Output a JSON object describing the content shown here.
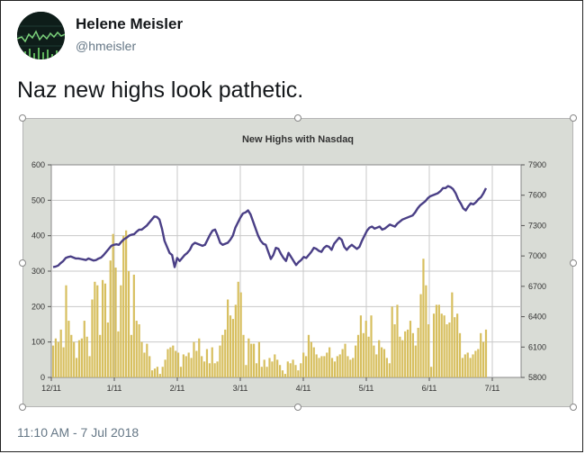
{
  "tweet": {
    "author_name": "Helene Meisler",
    "author_handle": "@hmeisler",
    "text": "Naz new highs look pathetic.",
    "timestamp": "11:10 AM - 7 Jul 2018"
  },
  "colors": {
    "bar": "#d7bf5f",
    "line": "#4a3f86",
    "chart_bg": "#d9dcd6",
    "plot_bg": "#ffffff"
  },
  "chart_data": {
    "type": "bar+line",
    "title": "New Highs with Nasdaq",
    "xlabel": "",
    "ylabel": "",
    "x_ticks": [
      "12/11",
      "1/11",
      "2/11",
      "3/11",
      "4/11",
      "5/11",
      "6/11",
      "7/11"
    ],
    "y_left_ticks": [
      "0",
      "100",
      "200",
      "300",
      "400",
      "500",
      "600"
    ],
    "y_left_range": [
      0,
      600
    ],
    "y_right_ticks": [
      "5800",
      "6100",
      "6400",
      "6700",
      "7000",
      "7300",
      "7600",
      "7900"
    ],
    "y_right_range": [
      5800,
      7900
    ],
    "grid": true,
    "series": [
      {
        "chart_type": "bar",
        "axis": "left",
        "values": [
          90,
          110,
          100,
          135,
          85,
          260,
          160,
          120,
          100,
          55,
          105,
          110,
          160,
          115,
          60,
          220,
          270,
          260,
          120,
          275,
          265,
          155,
          330,
          405,
          310,
          130,
          260,
          400,
          415,
          300,
          120,
          290,
          160,
          150,
          100,
          70,
          95,
          60,
          20,
          25,
          30,
          10,
          30,
          50,
          80,
          85,
          90,
          75,
          70,
          30,
          65,
          60,
          70,
          55,
          100,
          75,
          110,
          60,
          45,
          80,
          40,
          85,
          40,
          45,
          90,
          120,
          135,
          220,
          175,
          165,
          205,
          270,
          240,
          120,
          35,
          110,
          95,
          95,
          40,
          100,
          30,
          50,
          30,
          55,
          45,
          65,
          50,
          35,
          20,
          10,
          45,
          40,
          50,
          35,
          20,
          40,
          70,
          60,
          120,
          100,
          85,
          65,
          55,
          60,
          60,
          70,
          85,
          55,
          45,
          60,
          65,
          80,
          95,
          60,
          50,
          55,
          90,
          120,
          175,
          125,
          160,
          115,
          175,
          90,
          65,
          105,
          85,
          80,
          55,
          40,
          200,
          150,
          205,
          115,
          105,
          130,
          135,
          160,
          125,
          90,
          140,
          235,
          335,
          260,
          150,
          30,
          180,
          205,
          205,
          180,
          175,
          150,
          155,
          240,
          170,
          180,
          125,
          55,
          65,
          70,
          55,
          65,
          75,
          80,
          125,
          100,
          135
        ]
      },
      {
        "chart_type": "line",
        "axis": "right",
        "values": [
          6890,
          6895,
          6905,
          6930,
          6950,
          6980,
          6990,
          6995,
          6985,
          6975,
          6975,
          6970,
          6965,
          6960,
          6975,
          6965,
          6955,
          6960,
          6975,
          6985,
          7010,
          7040,
          7070,
          7100,
          7110,
          7115,
          7110,
          7140,
          7165,
          7180,
          7200,
          7210,
          7215,
          7240,
          7260,
          7260,
          7280,
          7300,
          7330,
          7360,
          7390,
          7385,
          7360,
          7270,
          7150,
          7090,
          7030,
          7010,
          6890,
          6980,
          6950,
          6980,
          7010,
          7030,
          7060,
          7110,
          7130,
          7120,
          7110,
          7100,
          7110,
          7160,
          7210,
          7250,
          7260,
          7200,
          7130,
          7110,
          7120,
          7130,
          7160,
          7200,
          7280,
          7330,
          7380,
          7420,
          7430,
          7450,
          7410,
          7340,
          7270,
          7200,
          7150,
          7120,
          7110,
          7040,
          6970,
          7010,
          7080,
          7070,
          7020,
          6980,
          6950,
          7030,
          6990,
          6950,
          6910,
          6940,
          6960,
          6990,
          6980,
          7010,
          7040,
          7080,
          7070,
          7050,
          7040,
          7080,
          7100,
          7090,
          7060,
          7120,
          7150,
          7180,
          7160,
          7090,
          7060,
          7090,
          7110,
          7090,
          7070,
          7090,
          7150,
          7200,
          7250,
          7280,
          7290,
          7270,
          7280,
          7290,
          7260,
          7270,
          7290,
          7310,
          7300,
          7290,
          7320,
          7340,
          7360,
          7370,
          7380,
          7390,
          7400,
          7430,
          7470,
          7500,
          7520,
          7540,
          7570,
          7590,
          7600,
          7610,
          7620,
          7640,
          7670,
          7670,
          7690,
          7680,
          7660,
          7620,
          7560,
          7520,
          7470,
          7450,
          7490,
          7520,
          7510,
          7530,
          7560,
          7580,
          7620,
          7670
        ]
      }
    ]
  }
}
